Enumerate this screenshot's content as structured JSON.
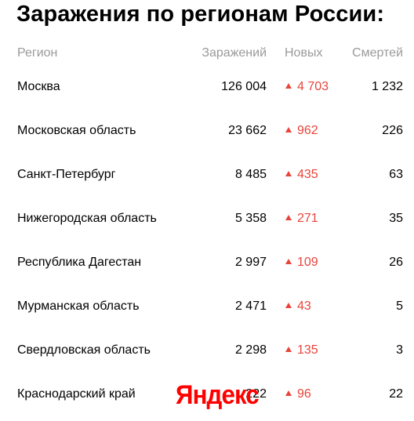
{
  "title": "Заражения по регионам России:",
  "columns": {
    "region": "Регион",
    "total": "Заражений",
    "new": "Новых",
    "deaths": "Смертей"
  },
  "rows": [
    {
      "region": "Москва",
      "total": "126 004",
      "new": "4 703",
      "deaths": "1 232"
    },
    {
      "region": "Московская область",
      "total": "23 662",
      "new": "962",
      "deaths": "226"
    },
    {
      "region": "Санкт-Петербург",
      "total": "8 485",
      "new": "435",
      "deaths": "63"
    },
    {
      "region": "Нижегородская область",
      "total": "5 358",
      "new": "271",
      "deaths": "35"
    },
    {
      "region": "Республика Дагестан",
      "total": "2 997",
      "new": "109",
      "deaths": "26"
    },
    {
      "region": "Мурманская область",
      "total": "2 471",
      "new": "43",
      "deaths": "5"
    },
    {
      "region": "Свердловская область",
      "total": "2 298",
      "new": "135",
      "deaths": "3"
    },
    {
      "region": "Краснодарский край",
      "total": "222",
      "new": "96",
      "deaths": "22"
    }
  ],
  "logo": "Яндекс",
  "colors": {
    "increase": "#e8443a",
    "header_text": "#9a9a9a",
    "logo": "#ff0000"
  },
  "icons": {
    "increase": "triangle-up-icon"
  }
}
